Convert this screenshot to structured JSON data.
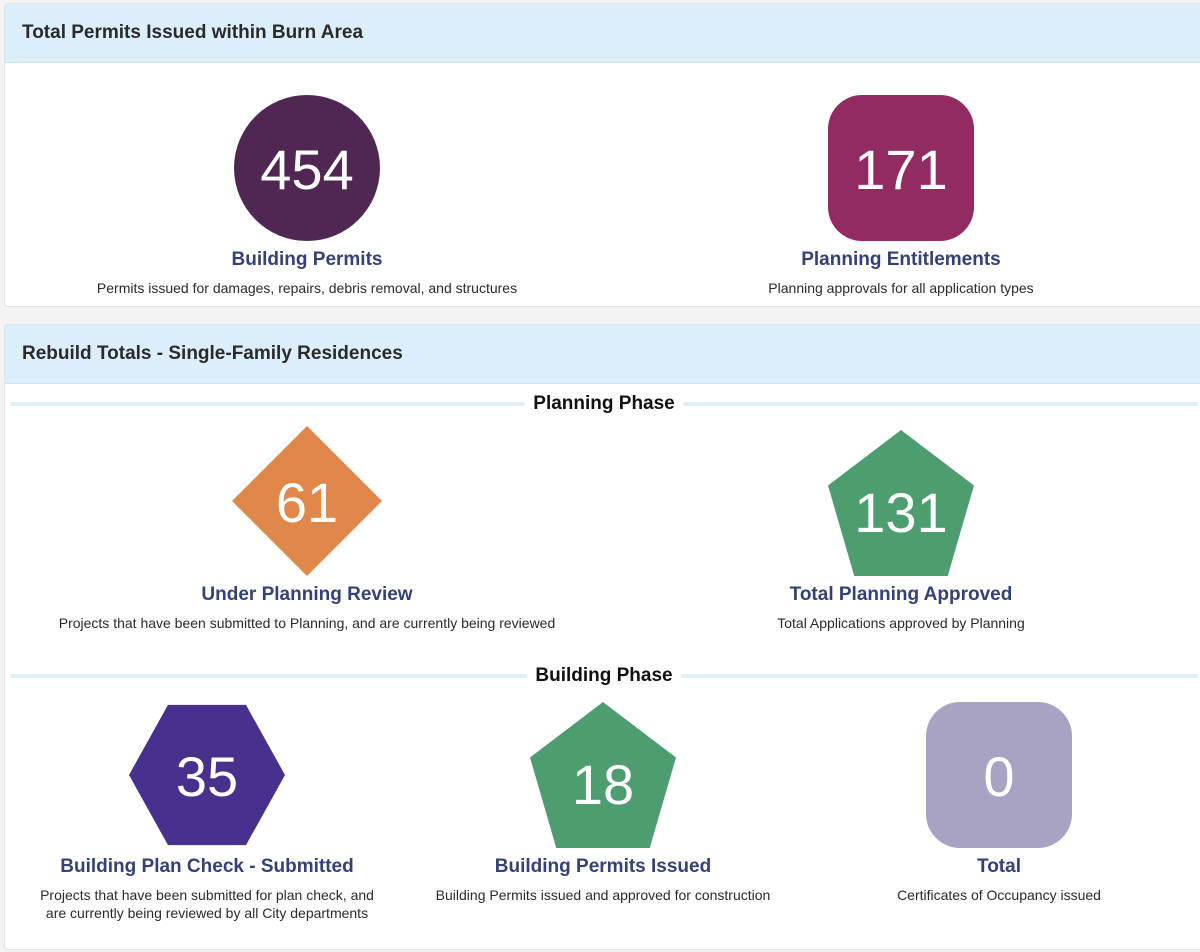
{
  "permits_panel": {
    "title": "Total Permits Issued within Burn Area",
    "cards": [
      {
        "value": "454",
        "label": "Building Permits",
        "description": "Permits issued for damages, repairs, debris removal, and structures",
        "color": "#502753",
        "shape": "circle"
      },
      {
        "value": "171",
        "label": "Planning Entitlements",
        "description": "Planning approvals for all application types",
        "color": "#912b61",
        "shape": "rounded-square"
      }
    ]
  },
  "rebuild_panel": {
    "title": "Rebuild Totals - Single-Family Residences",
    "planning_phase": {
      "title": "Planning Phase",
      "cards": [
        {
          "value": "61",
          "label": "Under Planning Review",
          "description": "Projects that have been submitted to Planning, and are currently being reviewed",
          "color": "#e0884a",
          "shape": "diamond"
        },
        {
          "value": "131",
          "label": "Total Planning Approved",
          "description": "Total Applications approved by Planning",
          "color": "#4e9d70",
          "shape": "pentagon"
        }
      ]
    },
    "building_phase": {
      "title": "Building Phase",
      "cards": [
        {
          "value": "35",
          "label": "Building Plan Check - Submitted",
          "description_lines": [
            "Projects that have been submitted for plan check, and",
            "are currently being reviewed by all City departments"
          ],
          "color": "#47318d",
          "shape": "hexagon"
        },
        {
          "value": "18",
          "label": "Building Permits Issued",
          "description": "Building Permits issued and approved for construction",
          "color": "#4e9d70",
          "shape": "pentagon"
        },
        {
          "value": "0",
          "label": "Total",
          "description": "Certificates of Occupancy issued",
          "color": "#a8a3c3",
          "shape": "rounded-square"
        }
      ]
    }
  }
}
